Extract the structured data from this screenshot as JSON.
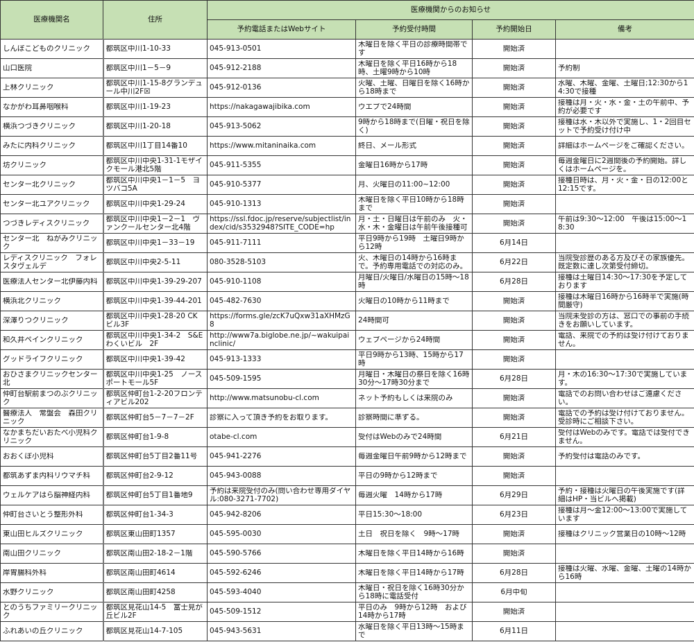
{
  "header": {
    "name": "医療機関名",
    "address": "住所",
    "notice_group": "医療機関からのお知らせ",
    "contact": "予約電話またはWebサイト",
    "hours": "予約受付時間",
    "start": "予約開始日",
    "remarks": "備考"
  },
  "colors": {
    "header_bg": "#c6e0b4",
    "border": "#333333"
  },
  "rows": [
    [
      "しんぼこどものクリニック",
      "都筑区中川1-10-33",
      "045-913-0501",
      "木曜日を除く平日の診療時間帯です",
      "開始済",
      ""
    ],
    [
      "山口医院",
      "都筑区中川1－5－9",
      "045-912-2188",
      "木曜日を除く平日16時から18時、土曜9時から10時",
      "開始済",
      "予約制"
    ],
    [
      "上林クリニック",
      "都筑区中川1-15-8グランデュール中川2F☒",
      "045-912-0136",
      "火曜、土曜、日曜日を除く16時から18時まで",
      "開始済",
      "水曜、木曜、金曜、土曜日;12:30から14:30で接種"
    ],
    [
      "なかがわ耳鼻咽喉科",
      "都筑区中川1-19-23",
      "https://nakagawajibika.com",
      "ウエブで24時間",
      "開始済",
      "接種は月・火・水・金・土の午前中、予約が必要です"
    ],
    [
      "横浜つづきクリニック",
      "都筑区中川1-20-18",
      "045-913-5062",
      "9時から18時まで(日曜・祝日を除く)",
      "開始済",
      "接種は水・木以外で実施し、1・2回目セットで予約受け付け中"
    ],
    [
      "みたに内科クリニック",
      "都筑区中川1丁目14番10",
      "https://www.mitaninaika.com",
      "終日、メール形式",
      "開始済",
      "詳細はホームページをご確認ください。"
    ],
    [
      "坊クリニック",
      "都筑区中川中央1-31-1モザイクモール港北5階",
      "045-911-5355",
      "金曜日16時から17時",
      "開始済",
      "毎週金曜日に2週間後の予約開始。詳しくはホームページを。"
    ],
    [
      "センター北クリニック",
      "都筑区中川中央1－1－5　ヨツバコ5A",
      "045-910-5377",
      "月、火曜日の11:00~12:00",
      "開始済",
      "接種日時は、月・火・金・日の12:00と12:15です。"
    ],
    [
      "センター北ユアクリニック",
      "都筑区中川中央1-29-24",
      "045-910-1313",
      "木曜日を除く平日10時から18時まで",
      "開始済",
      ""
    ],
    [
      "つづきレディスクリニック",
      "都筑区中川中央1－2－1　ヴァンクールセンター北4階",
      "https://ssl.fdoc.jp/reserve/subjectlist/index/cid/s3532948?SITE_CODE=hp",
      "月・土・日曜日は午前のみ　火・水・木・金曜日は午前午後接種可",
      "開始済",
      "午前は9:30～12:00　午後は15:00～18:30"
    ],
    [
      "センター北　ねがみクリニック",
      "都筑区中川中央1－33－19",
      "045-911-7111",
      "平日9時から19時　土曜日9時から12時",
      "6月14日",
      ""
    ],
    [
      "レディスクリニック　フォレスタヴェルデ",
      "都筑区中川中央2-5-11",
      "080-3528-5103",
      "火、木曜日の14時から16時まで。予約専用電話での対応のみ。",
      "6月22日",
      "当院受診歴のある方及びその家族優先。既定数に達し次第受付締切。"
    ],
    [
      "医療法人センター北伊藤内科",
      "都筑区中川中央1-39-29-207",
      "045-910-1108",
      "月曜日/火曜日/水曜日の15時～18時",
      "6月28日",
      "接種は土曜日14:30～17:30を予定しております"
    ],
    [
      "横浜北クリニック",
      "都筑区中川中央1-39-44-201",
      "045-482-7630",
      "火曜日の10時から11時まで",
      "開始済",
      "接種は木曜日16時から16時半で実施(時間厳守)"
    ],
    [
      "深澤りつクリニック",
      "都筑区中川中央1-28-20 CKビル3F",
      "https://forms.gle/zcK7uQxw31aXHMzG8",
      "24時間可",
      "開始済",
      "当院未受診の方は、窓口での事前の手続きをお願いしています。"
    ],
    [
      "和久井ペインクリニック",
      "都筑区中川中央1-34-2　S&Eわくいビル　2F",
      "http://www7a.biglobe.ne.jp/~wakuipainclinic/",
      "ウェブページから24時間",
      "開始済",
      "電話、来院での予約は受け付けておりません。"
    ],
    [
      "グッドライフクリニック",
      "都筑区中川中央1-39-42",
      "045-913-1333",
      "平日9時から13時、15時から17時",
      "開始済",
      ""
    ],
    [
      "おひさまクリニックセンター北",
      "都筑区中川中央1-25　ノースポートモール5F",
      "045-509-1595",
      "月曜日・木曜日の祭日を除く16時30分～17時30分まで",
      "6月28日",
      "月・木の16:30～17:30で実施しています。"
    ],
    [
      "仲町台駅前まつのぶクリニック",
      "都筑区仲町台1-2-20フロンティアビル202",
      "http://www.matsunobu-cl.com",
      "ネット予約もしくは来院のみ",
      "開始済",
      "電話でのお問い合わせはご遠慮ください。"
    ],
    [
      "醫療法人　常盤会　森田クリニック",
      "都筑区仲町台5－7－7－2F",
      "診察に入って頂き予約をお取ります。",
      "診察時間に準ずる。",
      "開始済",
      "電話での予約は受け付けておりません。受診時にご相談下さい。"
    ],
    [
      "なかまちだいおたべ小児科クリニック",
      "都筑区仲町台1-9-8",
      "otabe-cl.com",
      "受付はWebのみで24時間",
      "6月21日",
      "受付はWebのみです。電話では受付できません。"
    ],
    [
      "おおくぼ小児科",
      "都筑区仲町台5丁目2番11号",
      "045-941-2276",
      "毎週金曜日午前9時から12時まで",
      "開始済",
      "予約受付は電話のみです。"
    ],
    [
      "都筑あずま内科リウマチ科",
      "都筑区仲町台2-9-12",
      "045-943-0088",
      "平日の9時から12時まで",
      "開始済",
      ""
    ],
    [
      "ウェルケアはら脳神経内科",
      "都筑区仲町台5丁目1番地9",
      "予約は来院受付のみ(問い合わせ専用ダイヤル:080-3271-7702)",
      "毎週火曜　14時から17時",
      "6月29日",
      "予約・接種は火曜日の午後実施です(詳細はHP・当ビルへ掲載)"
    ],
    [
      "仲町台さいとう整形外科",
      "都筑区仲町台1-34-3",
      "045-942-8206",
      "平日15:30～18:00",
      "6月23日",
      "接種は月～金12:00～13:00で実施しています"
    ],
    [
      "東山田ヒルズクリニック",
      "都筑区東山田町1357",
      "045-595-0030",
      "土日　祝日を除く　9時～17時",
      "開始済",
      "接種はクリニック営業日の10時～12時"
    ],
    [
      "南山田クリニック",
      "都筑区南山田2-18-2－1階",
      "045-590-5766",
      "木曜日を除く平日14時から16時",
      "開始済",
      ""
    ],
    [
      "岸胃腸科外科",
      "都筑区南山田町4614",
      "045-592-6246",
      "木曜日を除く平日14時から17時",
      "6月28日",
      "接種は火曜、水曜、金曜、土曜の14時から16時"
    ],
    [
      "水野クリニック",
      "都筑区南山田町4258",
      "045-593-4040",
      "木曜日・祝日を除く16時30分から18時に電話受付",
      "6月中旬",
      ""
    ],
    [
      "とのうちファミリークリニック",
      "都筑区見花山14-5　富士見が丘ビル2F",
      "045-509-1512",
      "平日のみ　9時から12時　および14時から17時",
      "開始済",
      ""
    ],
    [
      "ふれあいの丘クリニック",
      "都筑区見花山14-7-105",
      "045-943-5631",
      "水曜日を除く平日13時～15時まで",
      "6月11日",
      ""
    ]
  ]
}
